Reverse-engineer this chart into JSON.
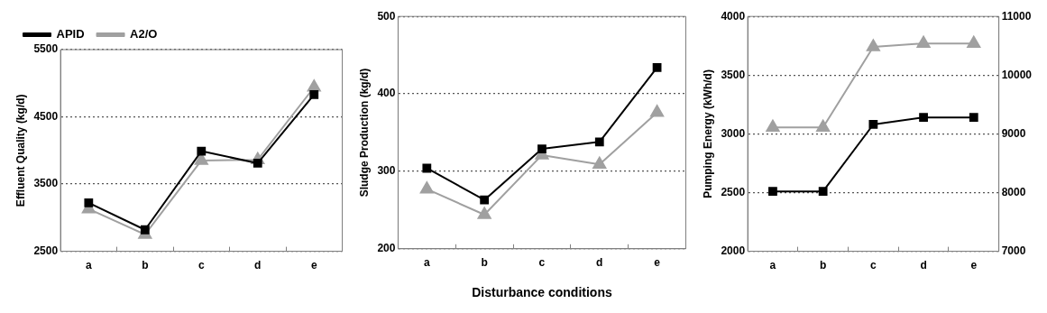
{
  "chart_data": [
    {
      "type": "line",
      "ylabel": "Effluent Quality (kg/d)",
      "categories": [
        "a",
        "b",
        "c",
        "d",
        "e"
      ],
      "ylim": [
        2500,
        5500
      ],
      "yticks": [
        2500,
        3500,
        4500,
        5500
      ],
      "grid": "y",
      "legend": "top left",
      "series": [
        {
          "name": "APID",
          "color": "#000000",
          "marker": "square",
          "values": [
            3220,
            2820,
            3990,
            3810,
            4830
          ]
        },
        {
          "name": "A2/O",
          "color": "#a0a0a0",
          "marker": "triangle",
          "values": [
            3130,
            2750,
            3850,
            3860,
            4940
          ]
        }
      ]
    },
    {
      "type": "line",
      "ylabel": "Sludge Production (kg/d)",
      "xlabel": "Disturbance conditions",
      "categories": [
        "a",
        "b",
        "c",
        "d",
        "e"
      ],
      "ylim": [
        200,
        500
      ],
      "yticks": [
        200,
        300,
        400,
        500
      ],
      "grid": "y",
      "series": [
        {
          "color": "#000000",
          "marker": "square",
          "values": [
            304,
            263,
            329,
            338,
            434
          ]
        },
        {
          "color": "#a0a0a0",
          "marker": "triangle",
          "values": [
            277,
            244,
            321,
            309,
            376
          ]
        }
      ]
    },
    {
      "type": "line",
      "ylabel": "Pumping Energy (kWh/d)",
      "categories": [
        "a",
        "b",
        "c",
        "d",
        "e"
      ],
      "ylim": [
        2000,
        4000
      ],
      "yticks": [
        2000,
        2500,
        3000,
        3500,
        4000
      ],
      "y2lim": [
        7000,
        11000
      ],
      "y2ticks": [
        7000,
        8000,
        9000,
        10000,
        11000
      ],
      "grid": "y",
      "series": [
        {
          "color": "#000000",
          "marker": "square",
          "values": [
            2510,
            2510,
            3080,
            3140,
            3140
          ]
        },
        {
          "color": "#a0a0a0",
          "marker": "triangle",
          "axis": "y2",
          "values": [
            9110,
            9110,
            10480,
            10540,
            10540
          ]
        }
      ]
    }
  ]
}
